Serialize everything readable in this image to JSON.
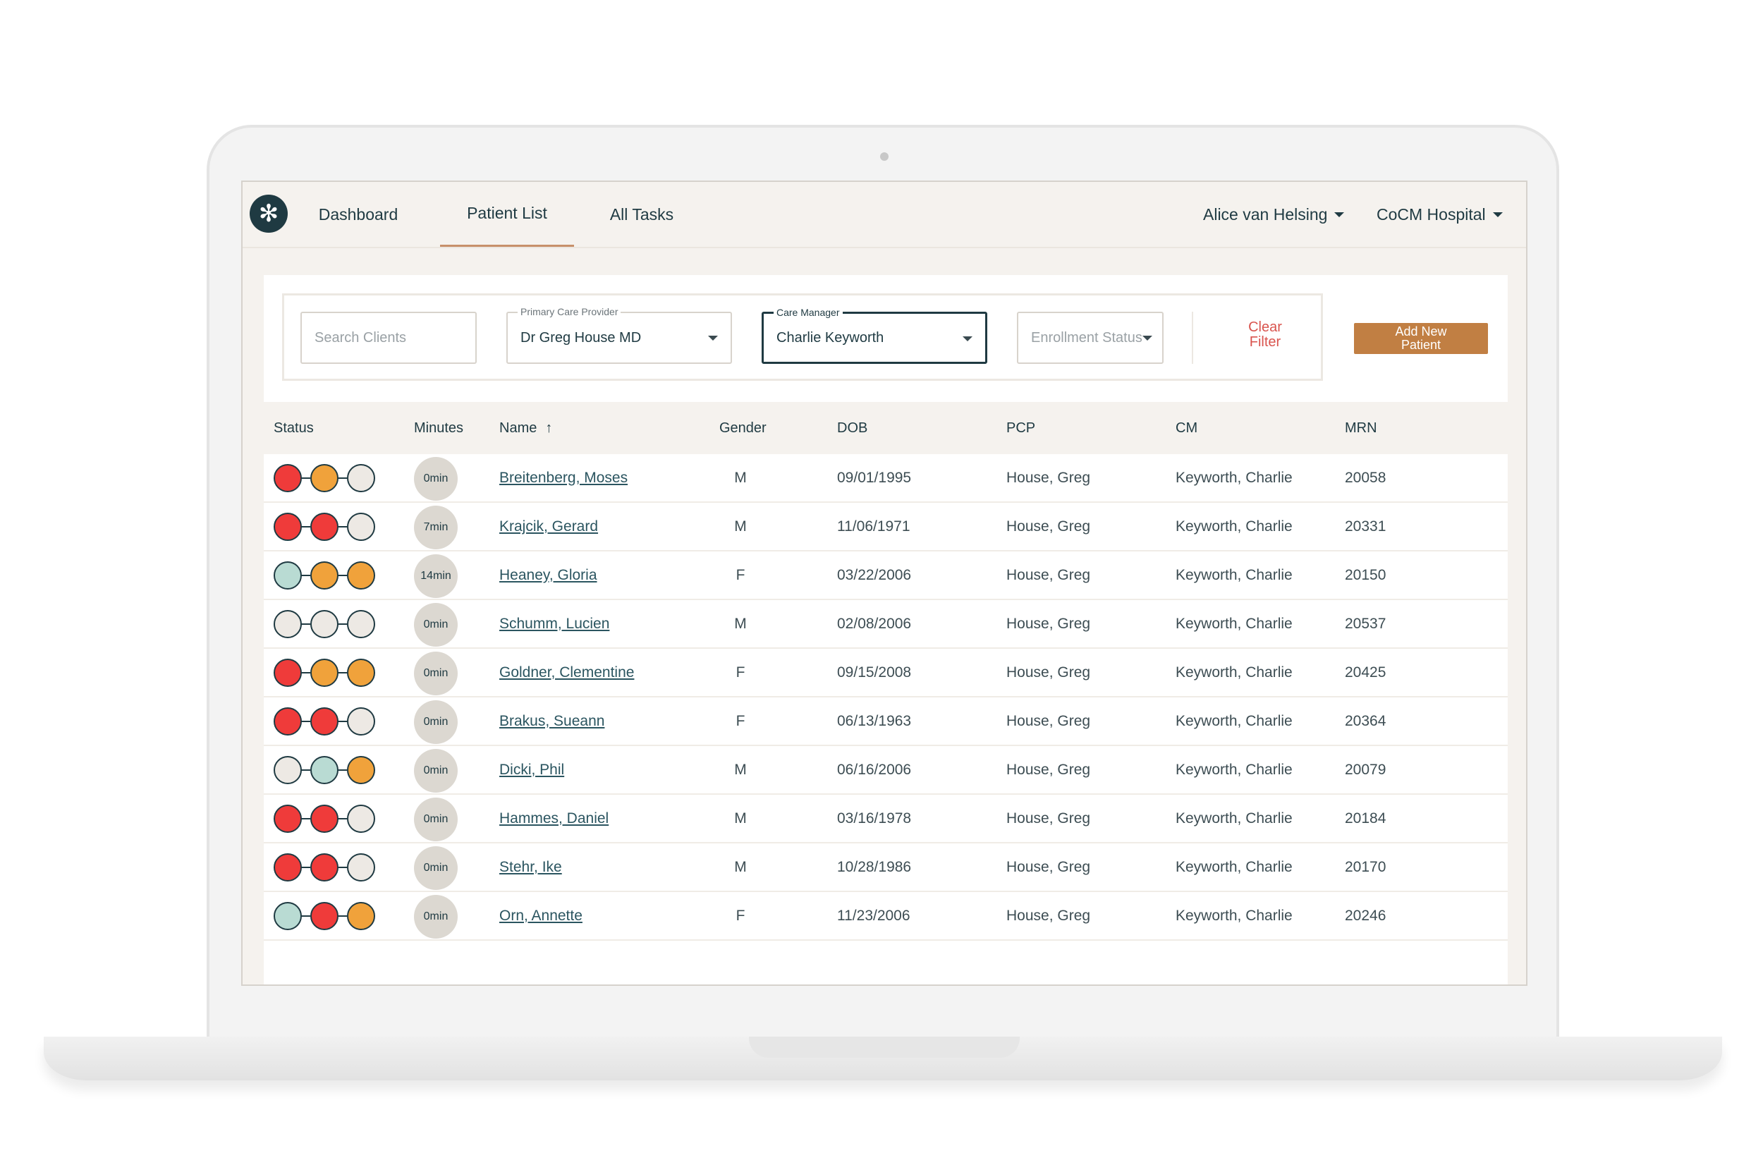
{
  "nav": {
    "tabs": [
      {
        "label": "Dashboard"
      },
      {
        "label": "Patient List",
        "active": true
      },
      {
        "label": "All Tasks"
      }
    ],
    "user": "Alice van Helsing",
    "organization": "CoCM Hospital"
  },
  "filters": {
    "search_placeholder": "Search Clients",
    "pcp_label": "Primary Care Provider",
    "pcp_value": "Dr Greg House MD",
    "cm_label": "Care Manager",
    "cm_value": "Charlie Keyworth",
    "enrollment_placeholder": "Enrollment Status",
    "clear_line1": "Clear",
    "clear_line2": "Filter",
    "add_line1": "Add New",
    "add_line2": "Patient"
  },
  "table": {
    "headers": {
      "status": "Status",
      "minutes": "Minutes",
      "name": "Name",
      "gender": "Gender",
      "dob": "DOB",
      "pcp": "PCP",
      "cm": "CM",
      "mrn": "MRN"
    },
    "rows": [
      {
        "status": [
          "red",
          "orange",
          "gray"
        ],
        "minutes": "0min",
        "name": "Breitenberg, Moses",
        "gender": "M",
        "dob": "09/01/1995",
        "pcp": "House, Greg",
        "cm": "Keyworth, Charlie",
        "mrn": "20058"
      },
      {
        "status": [
          "red",
          "red",
          "gray"
        ],
        "minutes": "7min",
        "name": "Krajcik, Gerard",
        "gender": "M",
        "dob": "11/06/1971",
        "pcp": "House, Greg",
        "cm": "Keyworth, Charlie",
        "mrn": "20331"
      },
      {
        "status": [
          "teal",
          "orange",
          "orange"
        ],
        "minutes": "14min",
        "name": "Heaney, Gloria",
        "gender": "F",
        "dob": "03/22/2006",
        "pcp": "House, Greg",
        "cm": "Keyworth, Charlie",
        "mrn": "20150"
      },
      {
        "status": [
          "gray",
          "gray",
          "gray"
        ],
        "minutes": "0min",
        "name": "Schumm, Lucien",
        "gender": "M",
        "dob": "02/08/2006",
        "pcp": "House, Greg",
        "cm": "Keyworth, Charlie",
        "mrn": "20537"
      },
      {
        "status": [
          "red",
          "orange",
          "orange"
        ],
        "minutes": "0min",
        "name": "Goldner, Clementine",
        "gender": "F",
        "dob": "09/15/2008",
        "pcp": "House, Greg",
        "cm": "Keyworth, Charlie",
        "mrn": "20425"
      },
      {
        "status": [
          "red",
          "red",
          "gray"
        ],
        "minutes": "0min",
        "name": "Brakus, Sueann",
        "gender": "F",
        "dob": "06/13/1963",
        "pcp": "House, Greg",
        "cm": "Keyworth, Charlie",
        "mrn": "20364"
      },
      {
        "status": [
          "gray",
          "teal",
          "orange"
        ],
        "minutes": "0min",
        "name": "Dicki, Phil",
        "gender": "M",
        "dob": "06/16/2006",
        "pcp": "House, Greg",
        "cm": "Keyworth, Charlie",
        "mrn": "20079"
      },
      {
        "status": [
          "red",
          "red",
          "gray"
        ],
        "minutes": "0min",
        "name": "Hammes, Daniel",
        "gender": "M",
        "dob": "03/16/1978",
        "pcp": "House, Greg",
        "cm": "Keyworth, Charlie",
        "mrn": "20184"
      },
      {
        "status": [
          "red",
          "red",
          "gray"
        ],
        "minutes": "0min",
        "name": "Stehr, Ike",
        "gender": "M",
        "dob": "10/28/1986",
        "pcp": "House, Greg",
        "cm": "Keyworth, Charlie",
        "mrn": "20170"
      },
      {
        "status": [
          "teal",
          "red",
          "orange"
        ],
        "minutes": "0min",
        "name": "Orn, Annette",
        "gender": "F",
        "dob": "11/23/2006",
        "pcp": "House, Greg",
        "cm": "Keyworth, Charlie",
        "mrn": "20246"
      }
    ]
  },
  "status_colors": {
    "red": "#ef3b3a",
    "orange": "#f0a23b",
    "teal": "#b9dbd3",
    "gray": "#ede9e4"
  },
  "icons": {
    "logo": "asterisk-logo-icon",
    "sort": "arrow-up-icon",
    "caret": "chevron-down-icon"
  }
}
